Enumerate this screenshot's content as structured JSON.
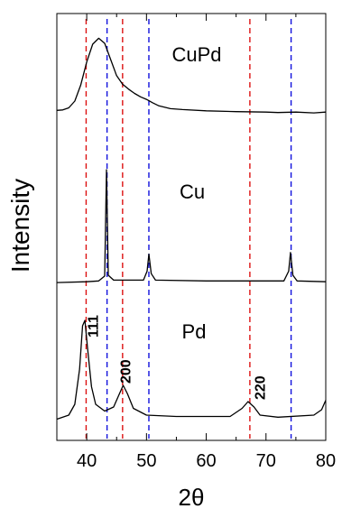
{
  "chart_data": {
    "type": "line",
    "title": "",
    "xlabel": "2θ",
    "ylabel": "Intensity",
    "xlim": [
      35,
      80
    ],
    "y_ticks_shown": false,
    "x_ticks": [
      40,
      50,
      60,
      70,
      80
    ],
    "x_tick_labels": [
      "40",
      "50",
      "60",
      "70",
      "80"
    ],
    "grid": false,
    "legend": "none",
    "series": [
      {
        "name": "CuPd",
        "color": "#000000",
        "points": [
          [
            35,
            0.5
          ],
          [
            36,
            0.55
          ],
          [
            37,
            0.8
          ],
          [
            38,
            1.6
          ],
          [
            39,
            3.5
          ],
          [
            40,
            6.2
          ],
          [
            41,
            8.3
          ],
          [
            42,
            9.0
          ],
          [
            43,
            8.4
          ],
          [
            44,
            6.5
          ],
          [
            45,
            4.6
          ],
          [
            46,
            3.6
          ],
          [
            47,
            3.0
          ],
          [
            48,
            2.5
          ],
          [
            49,
            2.1
          ],
          [
            50,
            1.8
          ],
          [
            51,
            1.4
          ],
          [
            52,
            1.05
          ],
          [
            54,
            0.7
          ],
          [
            56,
            0.6
          ],
          [
            60,
            0.45
          ],
          [
            65,
            0.35
          ],
          [
            70,
            0.3
          ],
          [
            72,
            0.25
          ],
          [
            75,
            0.3
          ],
          [
            78,
            0.2
          ],
          [
            80,
            0.3
          ]
        ]
      },
      {
        "name": "Cu",
        "color": "#000000",
        "points": [
          [
            35,
            0.1
          ],
          [
            40,
            0.2
          ],
          [
            42,
            0.3
          ],
          [
            43,
            0.9
          ],
          [
            43.3,
            14.0
          ],
          [
            43.6,
            1.0
          ],
          [
            44.5,
            0.4
          ],
          [
            49.5,
            0.4
          ],
          [
            50.1,
            1.5
          ],
          [
            50.4,
            3.6
          ],
          [
            50.8,
            1.2
          ],
          [
            51.5,
            0.4
          ],
          [
            60,
            0.3
          ],
          [
            73,
            0.3
          ],
          [
            73.8,
            1.5
          ],
          [
            74.1,
            3.8
          ],
          [
            74.5,
            1.0
          ],
          [
            75.2,
            0.3
          ],
          [
            80,
            0.2
          ]
        ]
      },
      {
        "name": "Pd",
        "color": "#000000",
        "points": [
          [
            35,
            0.1
          ],
          [
            37,
            0.4
          ],
          [
            38,
            1.2
          ],
          [
            38.8,
            3.8
          ],
          [
            39.3,
            7.0
          ],
          [
            39.7,
            7.4
          ],
          [
            40.1,
            5.5
          ],
          [
            40.8,
            2.5
          ],
          [
            41.5,
            1.2
          ],
          [
            43,
            0.7
          ],
          [
            44.5,
            1.0
          ],
          [
            45.5,
            2.0
          ],
          [
            46.1,
            2.6
          ],
          [
            46.8,
            2.0
          ],
          [
            47.8,
            0.9
          ],
          [
            50,
            0.4
          ],
          [
            55,
            0.3
          ],
          [
            64,
            0.3
          ],
          [
            66,
            0.9
          ],
          [
            67,
            1.4
          ],
          [
            68,
            1.0
          ],
          [
            69,
            0.4
          ],
          [
            72,
            0.25
          ],
          [
            78,
            0.4
          ],
          [
            79.3,
            0.8
          ],
          [
            80,
            1.5
          ]
        ]
      }
    ],
    "series_labels": [
      "CuPd",
      "Cu",
      "Pd"
    ],
    "reference_lines": [
      {
        "x": 39.9,
        "color": "#dd1111",
        "style": "dashed"
      },
      {
        "x": 46.0,
        "color": "#dd1111",
        "style": "dashed"
      },
      {
        "x": 67.3,
        "color": "#dd1111",
        "style": "dashed"
      },
      {
        "x": 43.4,
        "color": "#1111dd",
        "style": "dashed"
      },
      {
        "x": 50.4,
        "color": "#1111dd",
        "style": "dashed"
      },
      {
        "x": 74.2,
        "color": "#1111dd",
        "style": "dashed"
      }
    ],
    "peak_labels": [
      {
        "text": "111",
        "x": 41.0
      },
      {
        "text": "200",
        "x": 46.4
      },
      {
        "text": "220",
        "x": 68.9
      }
    ]
  }
}
